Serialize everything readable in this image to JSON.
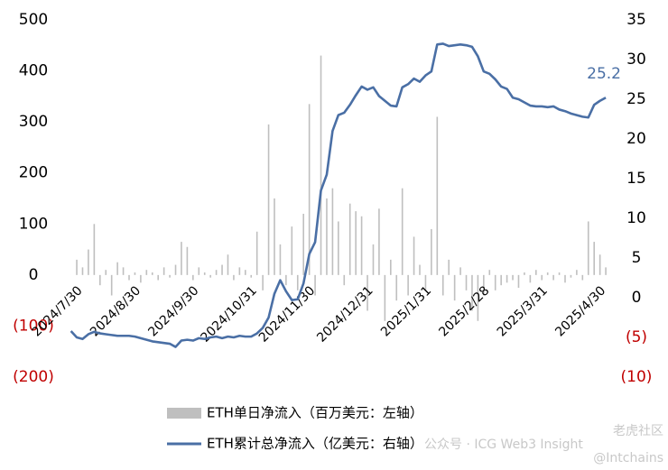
{
  "chart_data": {
    "type": "bar",
    "categories": [
      null,
      "2024/7/30",
      null,
      null,
      null,
      null,
      null,
      null,
      null,
      null,
      null,
      "2024/8/30",
      null,
      null,
      null,
      null,
      null,
      null,
      null,
      null,
      null,
      "2024/9/30",
      null,
      null,
      null,
      null,
      null,
      null,
      null,
      null,
      null,
      "2024/10/31",
      null,
      null,
      null,
      null,
      null,
      null,
      null,
      null,
      null,
      "2024/11/30",
      null,
      null,
      null,
      null,
      null,
      null,
      null,
      null,
      null,
      "2024/12/31",
      null,
      null,
      null,
      null,
      null,
      null,
      null,
      null,
      null,
      "2025/1/31",
      null,
      null,
      null,
      null,
      null,
      null,
      null,
      null,
      null,
      "2025/2/28",
      null,
      null,
      null,
      null,
      null,
      null,
      null,
      null,
      null,
      "2025/3/31",
      null,
      null,
      null,
      null,
      null,
      null,
      null,
      null,
      null,
      "2025/4/30",
      null
    ],
    "series": [
      {
        "name": "ETH单日净流入（百万美元：左轴）",
        "type": "bar",
        "color": "#bfbfbf",
        "axis": "y",
        "values": [
          0,
          30,
          15,
          50,
          100,
          -20,
          10,
          -40,
          25,
          15,
          -10,
          5,
          -15,
          10,
          5,
          -10,
          15,
          -5,
          20,
          65,
          55,
          -10,
          15,
          5,
          -5,
          10,
          20,
          40,
          -10,
          15,
          10,
          -5,
          85,
          -30,
          295,
          150,
          60,
          -20,
          95,
          -30,
          120,
          335,
          -40,
          430,
          150,
          170,
          105,
          -20,
          140,
          125,
          115,
          -70,
          60,
          130,
          -90,
          30,
          -50,
          170,
          -40,
          75,
          20,
          -30,
          90,
          310,
          -40,
          30,
          -50,
          15,
          -30,
          -70,
          -90,
          -40,
          10,
          -30,
          -20,
          -15,
          -10,
          -25,
          5,
          -15,
          10,
          -10,
          5,
          -10,
          5,
          -15,
          -5,
          10,
          -10,
          105,
          65,
          40,
          15
        ]
      },
      {
        "name": "ETH累计总净流入（亿美元：右轴）",
        "type": "line",
        "color": "#4a6fa5",
        "axis": "y2",
        "values": [
          -4.2,
          -5,
          -5.2,
          -4.6,
          -4.3,
          -4.5,
          -4.6,
          -4.7,
          -4.8,
          -4.8,
          -4.8,
          -4.9,
          -5.1,
          -5.3,
          -5.5,
          -5.6,
          -5.7,
          -5.8,
          -6.2,
          -5.4,
          -5.3,
          -5.4,
          -5.1,
          -5.2,
          -5.0,
          -4.9,
          -5.1,
          -4.9,
          -5.0,
          -4.8,
          -4.9,
          -4.9,
          -4.5,
          -3.8,
          -2.5,
          0.5,
          2.2,
          0.8,
          -0.3,
          -0.2,
          1.8,
          5.5,
          7,
          13.5,
          15.5,
          21,
          23,
          23.3,
          24.3,
          25.5,
          26.6,
          26.2,
          26.5,
          25.4,
          24.8,
          24.2,
          24.1,
          26.5,
          26.9,
          27.6,
          27.2,
          28,
          28.5,
          31.9,
          32,
          31.7,
          31.8,
          31.9,
          31.8,
          31.6,
          30.4,
          28.5,
          28.2,
          27.5,
          26.6,
          26.3,
          25.2,
          25.0,
          24.6,
          24.2,
          24.1,
          24.1,
          24.0,
          24.1,
          23.7,
          23.5,
          23.2,
          23.0,
          22.8,
          22.7,
          24.3,
          24.8,
          25.2
        ],
        "value_labels": [
          null,
          null,
          null,
          null,
          null,
          null,
          null,
          null,
          null,
          null,
          null,
          null,
          null,
          null,
          null,
          null,
          null,
          null,
          null,
          null,
          null,
          null,
          null,
          null,
          null,
          null,
          null,
          null,
          null,
          null,
          null,
          null,
          null,
          null,
          null,
          null,
          null,
          null,
          null,
          null,
          null,
          null,
          null,
          null,
          null,
          null,
          null,
          null,
          null,
          null,
          null,
          null,
          null,
          null,
          null,
          null,
          null,
          null,
          null,
          null,
          null,
          null,
          null,
          null,
          null,
          null,
          null,
          null,
          null,
          null,
          null,
          null,
          null,
          null,
          null,
          null,
          null,
          null,
          null,
          null,
          null,
          null,
          null,
          null,
          null,
          null,
          null,
          null,
          null,
          null,
          null,
          null,
          "25.2"
        ]
      }
    ],
    "ylim": [
      -200,
      500
    ],
    "yticks": [
      {
        "value": -200,
        "label": "(200)"
      },
      {
        "value": -100,
        "label": "(100)"
      },
      0,
      100,
      200,
      300,
      400,
      500
    ],
    "y2lim": [
      -10,
      35
    ],
    "y2ticks": [
      {
        "value": -10,
        "label": "(10)"
      },
      {
        "value": -5,
        "label": "(5)"
      },
      0,
      5,
      10,
      15,
      20,
      25,
      30,
      35
    ],
    "negative_tick_color": "#c00000",
    "legend": "bottom",
    "watermarks": [
      "公众号 · ICG Web3 Insight",
      "老虎社区",
      "@Intchains"
    ]
  }
}
